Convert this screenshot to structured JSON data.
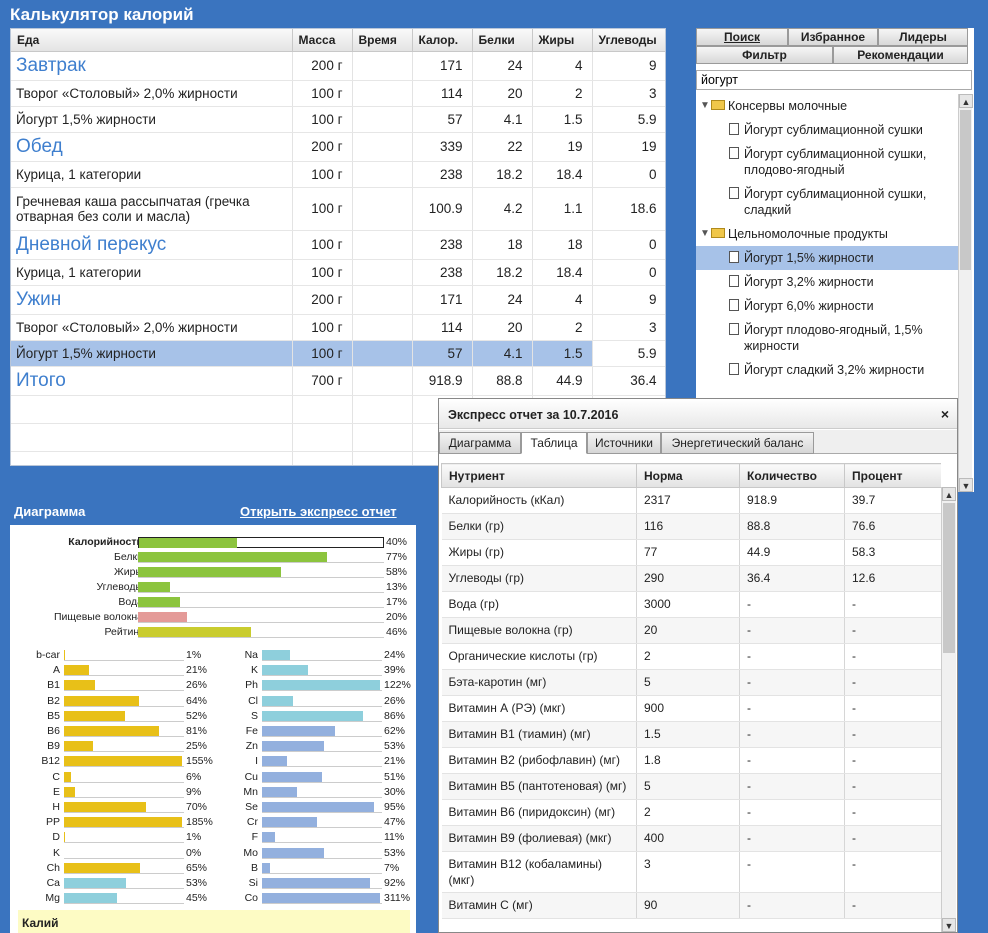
{
  "app": {
    "title": "Калькулятор калорий"
  },
  "food_table": {
    "columns": [
      "Еда",
      "Масса",
      "Время",
      "Калор.",
      "Белки",
      "Жиры",
      "Углеводы"
    ],
    "rows": [
      {
        "type": "meal",
        "name": "Завтрак",
        "mass": "200 г",
        "time": "",
        "kcal": "171",
        "protein": "24",
        "fat": "4",
        "carbs": "9"
      },
      {
        "type": "item",
        "name": "Творог «Столовый» 2,0% жирности",
        "mass": "100 г",
        "time": "",
        "kcal": "114",
        "protein": "20",
        "fat": "2",
        "carbs": "3"
      },
      {
        "type": "item",
        "name": "Йогурт 1,5% жирности",
        "mass": "100 г",
        "time": "",
        "kcal": "57",
        "protein": "4.1",
        "fat": "1.5",
        "carbs": "5.9"
      },
      {
        "type": "meal",
        "name": "Обед",
        "mass": "200 г",
        "time": "",
        "kcal": "339",
        "protein": "22",
        "fat": "19",
        "carbs": "19"
      },
      {
        "type": "item",
        "name": "Курица, 1 категории",
        "mass": "100 г",
        "time": "",
        "kcal": "238",
        "protein": "18.2",
        "fat": "18.4",
        "carbs": "0"
      },
      {
        "type": "item",
        "name": "Гречневая каша рассыпчатая (гречка отварная без соли и масла)",
        "mass": "100 г",
        "time": "",
        "kcal": "100.9",
        "protein": "4.2",
        "fat": "1.1",
        "carbs": "18.6"
      },
      {
        "type": "meal",
        "name": "Дневной перекус",
        "mass": "100 г",
        "time": "",
        "kcal": "238",
        "protein": "18",
        "fat": "18",
        "carbs": "0"
      },
      {
        "type": "item",
        "name": "Курица, 1 категории",
        "mass": "100 г",
        "time": "",
        "kcal": "238",
        "protein": "18.2",
        "fat": "18.4",
        "carbs": "0"
      },
      {
        "type": "meal",
        "name": "Ужин",
        "mass": "200 г",
        "time": "",
        "kcal": "171",
        "protein": "24",
        "fat": "4",
        "carbs": "9"
      },
      {
        "type": "item",
        "name": "Творог «Столовый» 2,0% жирности",
        "mass": "100 г",
        "time": "",
        "kcal": "114",
        "protein": "20",
        "fat": "2",
        "carbs": "3"
      },
      {
        "type": "item",
        "selected": true,
        "name": "Йогурт 1,5% жирности",
        "mass": "100 г",
        "time": "",
        "kcal": "57",
        "protein": "4.1",
        "fat": "1.5",
        "carbs": "5.9"
      },
      {
        "type": "meal",
        "name": "Итого",
        "mass": "700 г",
        "time": "",
        "kcal": "918.9",
        "protein": "88.8",
        "fat": "44.9",
        "carbs": "36.4"
      }
    ]
  },
  "right_panel": {
    "tabs": [
      "Поиск",
      "Избранное",
      "Лидеры",
      "Фильтр",
      "Рекомендации"
    ],
    "search_value": "йогурт",
    "tree": [
      {
        "type": "folder",
        "label": "Консервы молочные"
      },
      {
        "type": "item",
        "label": "Йогурт сублимационной сушки"
      },
      {
        "type": "item",
        "label": "Йогурт сублимационной сушки, плодово-ягодный"
      },
      {
        "type": "item",
        "label": "Йогурт сублимационной сушки, сладкий"
      },
      {
        "type": "folder",
        "label": "Цельномолочные продукты"
      },
      {
        "type": "item",
        "label": "Йогурт 1,5% жирности",
        "selected": true
      },
      {
        "type": "item",
        "label": "Йогурт 3,2% жирности"
      },
      {
        "type": "item",
        "label": "Йогурт 6,0% жирности"
      },
      {
        "type": "item",
        "label": "Йогурт плодово-ягодный, 1,5% жирности"
      },
      {
        "type": "item",
        "label": "Йогурт сладкий 3,2% жирности"
      }
    ]
  },
  "diagram": {
    "title": "Диаграмма",
    "open_link": "Открыть экспресс отчет",
    "main": [
      {
        "label": "Калорийность",
        "pct": "40%",
        "value": 40,
        "color": "#8cc43e"
      },
      {
        "label": "Белки",
        "pct": "77%",
        "value": 77,
        "color": "#8cc43e"
      },
      {
        "label": "Жиры",
        "pct": "58%",
        "value": 58,
        "color": "#8cc43e"
      },
      {
        "label": "Углеводы",
        "pct": "13%",
        "value": 13,
        "color": "#8cc43e"
      },
      {
        "label": "Вода",
        "pct": "17%",
        "value": 17,
        "color": "#8cc43e"
      },
      {
        "label": "Пищевые волокна",
        "pct": "20%",
        "value": 20,
        "color": "#e49a98"
      },
      {
        "label": "Рейтинг",
        "pct": "46%",
        "value": 46,
        "color": "#c9cc2e"
      }
    ],
    "vitamins": [
      {
        "label": "b-car",
        "pct": "1%",
        "value": 1
      },
      {
        "label": "A",
        "pct": "21%",
        "value": 21
      },
      {
        "label": "B1",
        "pct": "26%",
        "value": 26
      },
      {
        "label": "B2",
        "pct": "64%",
        "value": 64
      },
      {
        "label": "B5",
        "pct": "52%",
        "value": 52
      },
      {
        "label": "B6",
        "pct": "81%",
        "value": 81
      },
      {
        "label": "B9",
        "pct": "25%",
        "value": 25
      },
      {
        "label": "B12",
        "pct": "155%",
        "value": 155
      },
      {
        "label": "C",
        "pct": "6%",
        "value": 6
      },
      {
        "label": "E",
        "pct": "9%",
        "value": 9
      },
      {
        "label": "H",
        "pct": "70%",
        "value": 70
      },
      {
        "label": "PP",
        "pct": "185%",
        "value": 185
      },
      {
        "label": "D",
        "pct": "1%",
        "value": 1
      },
      {
        "label": "K",
        "pct": "0%",
        "value": 0
      },
      {
        "label": "Ch",
        "pct": "65%",
        "value": 65
      },
      {
        "label": "Ca",
        "pct": "53%",
        "value": 53
      },
      {
        "label": "Mg",
        "pct": "45%",
        "value": 45
      }
    ],
    "minerals": [
      {
        "label": "Na",
        "pct": "24%",
        "value": 24
      },
      {
        "label": "K",
        "pct": "39%",
        "value": 39
      },
      {
        "label": "Ph",
        "pct": "122%",
        "value": 122
      },
      {
        "label": "Cl",
        "pct": "26%",
        "value": 26
      },
      {
        "label": "S",
        "pct": "86%",
        "value": 86
      },
      {
        "label": "Fe",
        "pct": "62%",
        "value": 62
      },
      {
        "label": "Zn",
        "pct": "53%",
        "value": 53
      },
      {
        "label": "I",
        "pct": "21%",
        "value": 21
      },
      {
        "label": "Cu",
        "pct": "51%",
        "value": 51
      },
      {
        "label": "Mn",
        "pct": "30%",
        "value": 30
      },
      {
        "label": "Se",
        "pct": "95%",
        "value": 95
      },
      {
        "label": "Cr",
        "pct": "47%",
        "value": 47
      },
      {
        "label": "F",
        "pct": "11%",
        "value": 11
      },
      {
        "label": "Mo",
        "pct": "53%",
        "value": 53
      },
      {
        "label": "B",
        "pct": "7%",
        "value": 7
      },
      {
        "label": "Si",
        "pct": "92%",
        "value": 92
      },
      {
        "label": "Co",
        "pct": "311%",
        "value": 311
      }
    ],
    "colors": {
      "vitamin": "#e8c018",
      "mineral_cyan": "#8ecfdc",
      "mineral_blue": "#93b0de"
    },
    "potassium_label": "Калий"
  },
  "express": {
    "title": "Экспресс отчет за 10.7.2016",
    "close": "×",
    "tabs": [
      "Диаграмма",
      "Таблица",
      "Источники",
      "Энергетический баланс"
    ],
    "active_tab": 1,
    "columns": [
      "Нутриент",
      "Норма",
      "Количество",
      "Процент"
    ],
    "rows": [
      [
        "Калорийность (кКал)",
        "2317",
        "918.9",
        "39.7"
      ],
      [
        "Белки (гр)",
        "116",
        "88.8",
        "76.6"
      ],
      [
        "Жиры (гр)",
        "77",
        "44.9",
        "58.3"
      ],
      [
        "Углеводы (гр)",
        "290",
        "36.4",
        "12.6"
      ],
      [
        "Вода (гр)",
        "3000",
        "-",
        "-"
      ],
      [
        "Пищевые волокна (гр)",
        "20",
        "-",
        "-"
      ],
      [
        "Органические кислоты (гр)",
        "2",
        "-",
        "-"
      ],
      [
        "Бэта-каротин (мг)",
        "5",
        "-",
        "-"
      ],
      [
        "Витамин А (РЭ) (мкг)",
        "900",
        "-",
        "-"
      ],
      [
        "Витамин В1 (тиамин) (мг)",
        "1.5",
        "-",
        "-"
      ],
      [
        "Витамин В2 (рибофлавин) (мг)",
        "1.8",
        "-",
        "-"
      ],
      [
        "Витамин В5 (пантотеновая) (мг)",
        "5",
        "-",
        "-"
      ],
      [
        "Витамин В6 (пиридоксин) (мг)",
        "2",
        "-",
        "-"
      ],
      [
        "Витамин В9 (фолиевая) (мкг)",
        "400",
        "-",
        "-"
      ],
      [
        "Витамин В12 (кобаламины) (мкг)",
        "3",
        "-",
        "-"
      ],
      [
        "Витамин С (мг)",
        "90",
        "-",
        "-"
      ]
    ]
  }
}
